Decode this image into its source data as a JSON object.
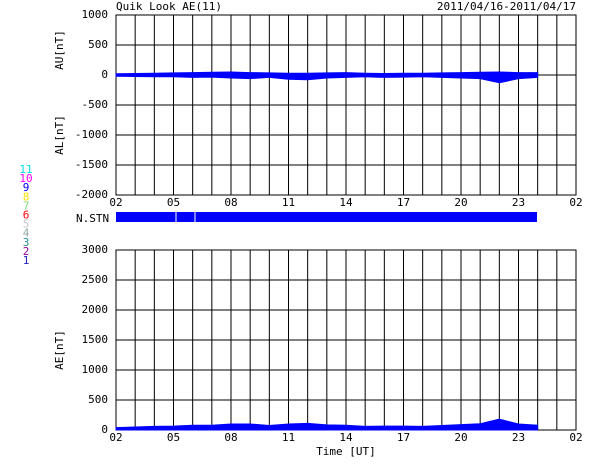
{
  "chart_data": [
    {
      "type": "area",
      "title": "Quik Look AE(11)",
      "subtitle": "2011/04/16-2011/04/17",
      "ylabel_upper": "AU[nT]",
      "ylabel_lower": "AL[nT]",
      "n_stn_label": "N.STN",
      "x": [
        2,
        3,
        4,
        5,
        6,
        7,
        8,
        9,
        10,
        11,
        12,
        13,
        14,
        15,
        16,
        17,
        18,
        19,
        20,
        21,
        22,
        23,
        24
      ],
      "series": [
        {
          "name": "AU",
          "color": "#0000ff",
          "values": [
            20,
            25,
            30,
            35,
            40,
            45,
            50,
            40,
            35,
            30,
            30,
            35,
            40,
            30,
            25,
            30,
            30,
            35,
            40,
            45,
            50,
            40,
            40
          ]
        },
        {
          "name": "AL",
          "color": "#0000ff",
          "values": [
            -20,
            -25,
            -30,
            -30,
            -40,
            -35,
            -50,
            -60,
            -40,
            -70,
            -80,
            -50,
            -40,
            -30,
            -40,
            -35,
            -30,
            -40,
            -50,
            -60,
            -130,
            -60,
            -40
          ]
        }
      ],
      "xlim": [
        2,
        26
      ],
      "xticks": [
        {
          "value": 2,
          "label": "02"
        },
        {
          "value": 5,
          "label": "05"
        },
        {
          "value": 8,
          "label": "08"
        },
        11,
        14,
        17,
        20,
        23,
        {
          "value": 26,
          "label": "02"
        }
      ],
      "ylim": [
        -2000,
        1000
      ],
      "yticks": [
        1000,
        500,
        0,
        -500,
        -1000,
        -1500,
        -2000
      ],
      "grid": true,
      "station_legend": [
        {
          "label": "11",
          "color": "#00e0e0"
        },
        {
          "label": "10",
          "color": "#ff00ff"
        },
        {
          "label": "9",
          "color": "#0000ff"
        },
        {
          "label": "8",
          "color": "#ffe000"
        },
        {
          "label": "7",
          "color": "#80e080"
        },
        {
          "label": "6",
          "color": "#ff0000"
        },
        {
          "label": "5",
          "color": "#c8c8c8"
        },
        {
          "label": "4",
          "color": "#90a8a8"
        },
        {
          "label": "3",
          "color": "#209090"
        },
        {
          "label": "2",
          "color": "#a000a0"
        },
        {
          "label": "1",
          "color": "#2020c0"
        }
      ]
    },
    {
      "type": "area",
      "ylabel": "AE[nT]",
      "xlabel": "Time [UT]",
      "x": [
        2,
        3,
        4,
        5,
        6,
        7,
        8,
        9,
        10,
        11,
        12,
        13,
        14,
        15,
        16,
        17,
        18,
        19,
        20,
        21,
        22,
        23,
        24
      ],
      "series": [
        {
          "name": "AE",
          "color": "#0000ff",
          "values": [
            40,
            50,
            60,
            65,
            80,
            80,
            100,
            100,
            75,
            100,
            110,
            85,
            80,
            60,
            65,
            65,
            60,
            75,
            90,
            105,
            180,
            100,
            80
          ]
        }
      ],
      "xlim": [
        2,
        26
      ],
      "xticks": [
        {
          "value": 2,
          "label": "02"
        },
        {
          "value": 5,
          "label": "05"
        },
        {
          "value": 8,
          "label": "08"
        },
        11,
        14,
        17,
        20,
        23,
        {
          "value": 26,
          "label": "02"
        }
      ],
      "ylim": [
        0,
        3000
      ],
      "yticks": [
        3000,
        2500,
        2000,
        1500,
        1000,
        500,
        0
      ],
      "grid": true
    }
  ]
}
